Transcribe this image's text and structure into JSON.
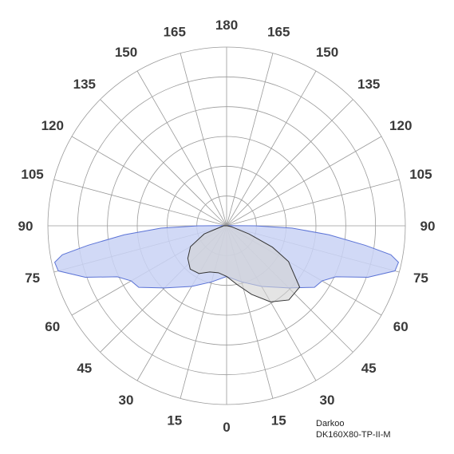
{
  "chart_data": {
    "type": "polar",
    "title": "",
    "angle_labels": [
      {
        "deg": 0,
        "label": "0"
      },
      {
        "deg": 15,
        "label": "15"
      },
      {
        "deg": -15,
        "label": "15"
      },
      {
        "deg": 30,
        "label": "30"
      },
      {
        "deg": -30,
        "label": "30"
      },
      {
        "deg": 45,
        "label": "45"
      },
      {
        "deg": -45,
        "label": "45"
      },
      {
        "deg": 60,
        "label": "60"
      },
      {
        "deg": -60,
        "label": "60"
      },
      {
        "deg": 75,
        "label": "75"
      },
      {
        "deg": -75,
        "label": "75"
      },
      {
        "deg": 90,
        "label": "90"
      },
      {
        "deg": -90,
        "label": "90"
      },
      {
        "deg": 105,
        "label": "105"
      },
      {
        "deg": -105,
        "label": "105"
      },
      {
        "deg": 120,
        "label": "120"
      },
      {
        "deg": -120,
        "label": "120"
      },
      {
        "deg": 135,
        "label": "135"
      },
      {
        "deg": -135,
        "label": "135"
      },
      {
        "deg": 150,
        "label": "150"
      },
      {
        "deg": -150,
        "label": "150"
      },
      {
        "deg": 165,
        "label": "165"
      },
      {
        "deg": -165,
        "label": "165"
      },
      {
        "deg": 180,
        "label": "180"
      }
    ],
    "rings": 6,
    "r_max": 6,
    "grid": true,
    "series": [
      {
        "color": "#5b73d6",
        "fill": "#c9d2f5",
        "points": [
          [
            0,
            1.7
          ],
          [
            15,
            1.95
          ],
          [
            30,
            2.35
          ],
          [
            45,
            2.95
          ],
          [
            55,
            3.6
          ],
          [
            60,
            3.7
          ],
          [
            65,
            4.05
          ],
          [
            70,
            5.05
          ],
          [
            75,
            5.85
          ],
          [
            78,
            5.9
          ],
          [
            80,
            5.6
          ],
          [
            82,
            4.7
          ],
          [
            85,
            3.45
          ],
          [
            88,
            2.2
          ],
          [
            90,
            0.95
          ],
          [
            92,
            0.2
          ],
          [
            95,
            0.05
          ],
          [
            180,
            0
          ],
          [
            -95,
            0.05
          ],
          [
            -92,
            0.2
          ],
          [
            -90,
            0.95
          ],
          [
            -88,
            2.2
          ],
          [
            -85,
            3.45
          ],
          [
            -82,
            4.7
          ],
          [
            -80,
            5.6
          ],
          [
            -78,
            5.9
          ],
          [
            -75,
            5.85
          ],
          [
            -70,
            5.05
          ],
          [
            -65,
            4.05
          ],
          [
            -60,
            3.7
          ],
          [
            -55,
            3.6
          ],
          [
            -45,
            2.95
          ],
          [
            -30,
            2.35
          ],
          [
            -15,
            1.95
          ]
        ]
      },
      {
        "color": "#333333",
        "fill": "#d2d2d2",
        "points": [
          [
            -90,
            0.1
          ],
          [
            -70,
            0.8
          ],
          [
            -60,
            1.4
          ],
          [
            -50,
            1.7
          ],
          [
            -40,
            1.9
          ],
          [
            -30,
            1.85
          ],
          [
            -20,
            1.65
          ],
          [
            -10,
            1.6
          ],
          [
            0,
            1.7
          ],
          [
            10,
            2.0
          ],
          [
            20,
            2.45
          ],
          [
            30,
            2.95
          ],
          [
            40,
            3.25
          ],
          [
            50,
            3.2
          ],
          [
            60,
            2.4
          ],
          [
            65,
            1.7
          ],
          [
            70,
            0.8
          ],
          [
            80,
            0.15
          ],
          [
            90,
            0.02
          ]
        ]
      }
    ]
  },
  "brand": {
    "line1": "Darkoo",
    "line2": "DK160X80-TP-II-M"
  }
}
